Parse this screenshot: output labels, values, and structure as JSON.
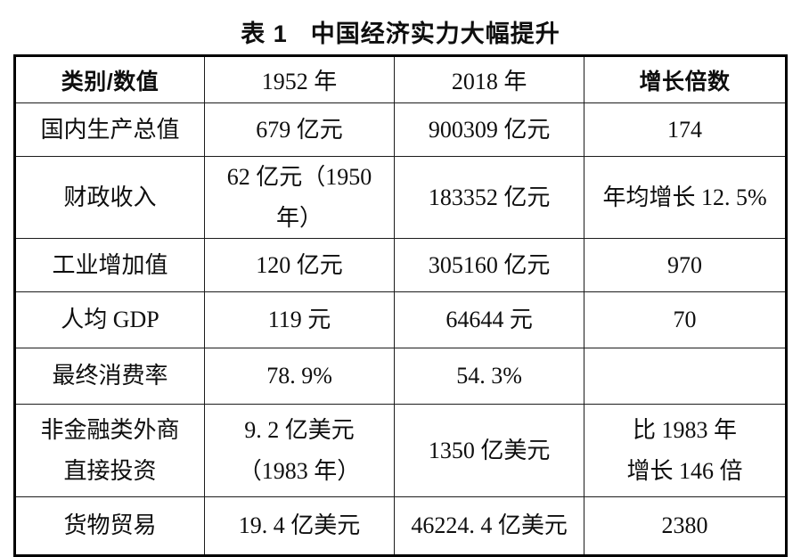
{
  "page": {
    "background_color": "#ffffff",
    "text_color": "#0e0e0e",
    "border_color": "#000000"
  },
  "title": {
    "label": "表 1",
    "text": "中国经济实力大幅提升"
  },
  "table": {
    "columns": [
      "类别/数值",
      "1952 年",
      "2018 年",
      "增长倍数"
    ],
    "rows": [
      {
        "category": "国内生产总值",
        "y1952": "679 亿元",
        "y2018": "900309 亿元",
        "growth": "174"
      },
      {
        "category": "财政收入",
        "y1952": "62 亿元（1950 年）",
        "y2018": "183352 亿元",
        "growth": "年均增长 12. 5%"
      },
      {
        "category": "工业增加值",
        "y1952": "120 亿元",
        "y2018": "305160 亿元",
        "growth": "970"
      },
      {
        "category": "人均 GDP",
        "y1952": "119 元",
        "y2018": "64644 元",
        "growth": "70"
      },
      {
        "category": "最终消费率",
        "y1952": "78. 9%",
        "y2018": "54. 3%",
        "growth": ""
      },
      {
        "category": "非金融类外商\n直接投资",
        "y1952": "9. 2 亿美元\n（1983 年）",
        "y2018": "1350 亿美元",
        "growth": "比 1983 年\n增长 146 倍"
      },
      {
        "category": "货物贸易",
        "y1952": "19. 4 亿美元",
        "y2018": "46224. 4 亿美元",
        "growth": "2380"
      }
    ]
  }
}
